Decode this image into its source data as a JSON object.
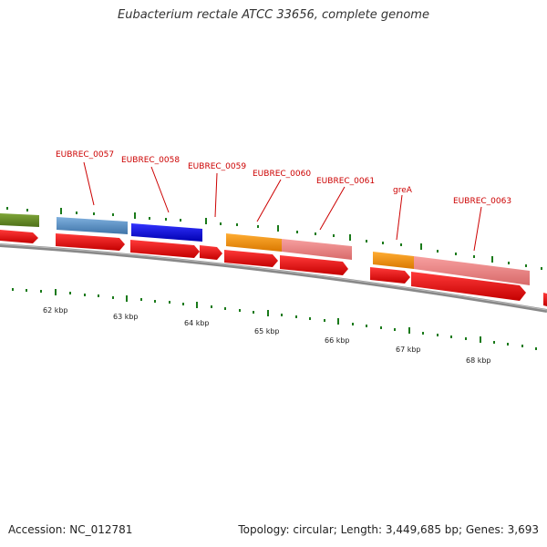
{
  "title": "Eubacterium rectale ATCC 33656, complete genome",
  "accession": "Accession: NC_012781",
  "summary": "Topology: circular; Length: 3,449,685 bp; Genes: 3,693",
  "gene_labels": [
    "EUBREC_0057",
    "EUBREC_0058",
    "EUBREC_0059",
    "EUBREC_0060",
    "EUBREC_0061",
    "greA",
    "EUBREC_0063"
  ],
  "scale_labels": [
    "62 kbp",
    "63 kbp",
    "64 kbp",
    "65 kbp",
    "66 kbp",
    "67 kbp",
    "68 kbp"
  ],
  "colors": {
    "label_red": "#cc0000",
    "cds_red": "#ee0000",
    "tick_green": "#1a7a1a",
    "backbone": "#888888"
  }
}
